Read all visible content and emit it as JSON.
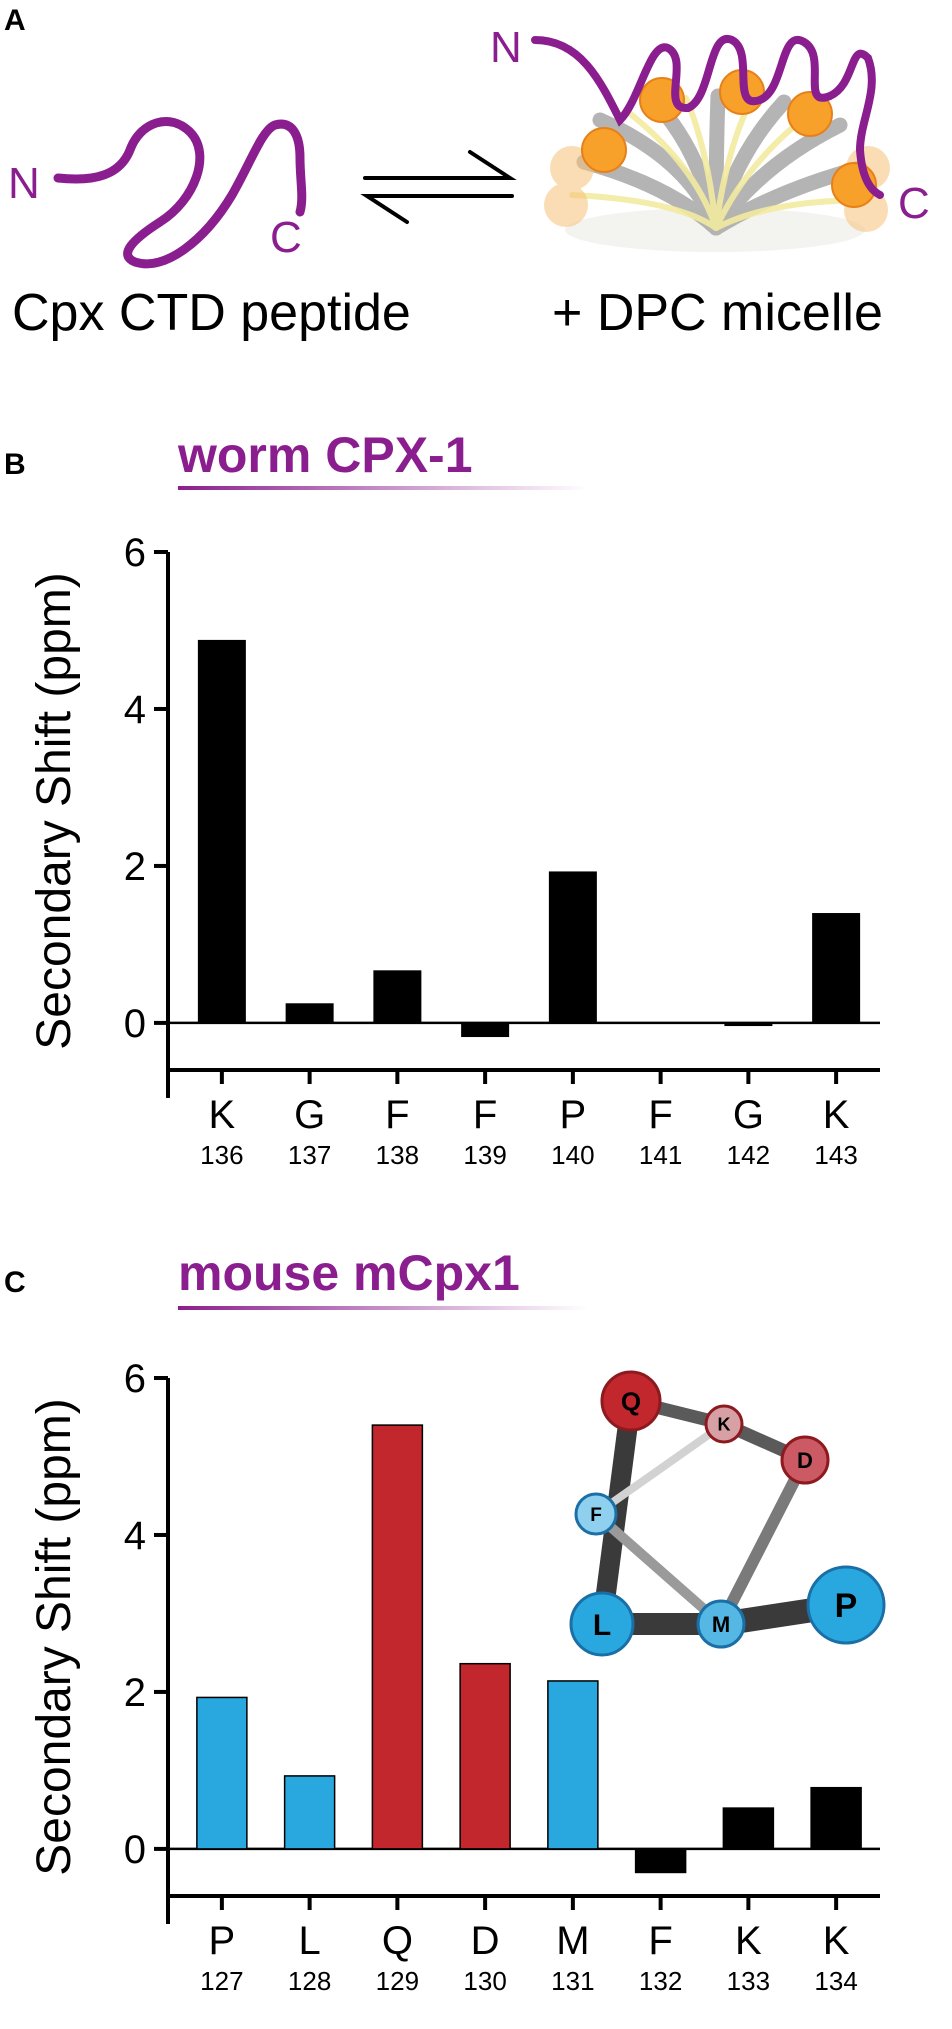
{
  "panel_a": {
    "letter": "A",
    "left_caption": "Cpx CTD peptide",
    "right_caption": "+ DPC micelle",
    "left_n": "N",
    "left_c": "C",
    "right_n": "N",
    "right_c": "C",
    "equilibrium_symbol": "⇌"
  },
  "chart_data": [
    {
      "panel_letter": "B",
      "type": "bar",
      "title": "worm CPX-1",
      "ylabel": "Secondary Shift (ppm)",
      "xlabel": "",
      "ylim": [
        -0.6,
        6
      ],
      "yticks": [
        0,
        2,
        4,
        6
      ],
      "categories": [
        "K",
        "G",
        "F",
        "F",
        "P",
        "F",
        "G",
        "K"
      ],
      "residue_numbers": [
        "136",
        "137",
        "138",
        "139",
        "140",
        "141",
        "142",
        "143"
      ],
      "values": [
        4.88,
        0.25,
        0.67,
        -0.18,
        1.93,
        0.0,
        -0.04,
        1.4
      ],
      "colors": [
        "#000000",
        "#000000",
        "#000000",
        "#000000",
        "#000000",
        "#000000",
        "#000000",
        "#000000"
      ],
      "grid": false
    },
    {
      "panel_letter": "C",
      "type": "bar",
      "title": "mouse mCpx1",
      "ylabel": "Secondary Shift (ppm)",
      "xlabel": "",
      "ylim": [
        -0.6,
        6
      ],
      "yticks": [
        0,
        2,
        4,
        6
      ],
      "categories": [
        "P",
        "L",
        "Q",
        "D",
        "M",
        "F",
        "K",
        "K"
      ],
      "residue_numbers": [
        "127",
        "128",
        "129",
        "130",
        "131",
        "132",
        "133",
        "134"
      ],
      "values": [
        1.93,
        0.93,
        5.4,
        2.36,
        2.14,
        -0.3,
        0.52,
        0.78
      ],
      "colors": [
        "#29a8e0",
        "#29a8e0",
        "#c1272d",
        "#c1272d",
        "#29a8e0",
        "#000000",
        "#000000",
        "#000000"
      ],
      "grid": false
    }
  ],
  "helical_wheel": {
    "nodes": [
      {
        "label": "Q",
        "color": "#c1272d"
      },
      {
        "label": "K",
        "color": "#d7a0a4"
      },
      {
        "label": "D",
        "color": "#cc5a64"
      },
      {
        "label": "F",
        "color": "#8fd0ee"
      },
      {
        "label": "L",
        "color": "#29a8e0"
      },
      {
        "label": "M",
        "color": "#55b7e3"
      },
      {
        "label": "P",
        "color": "#29a8e0"
      }
    ]
  }
}
